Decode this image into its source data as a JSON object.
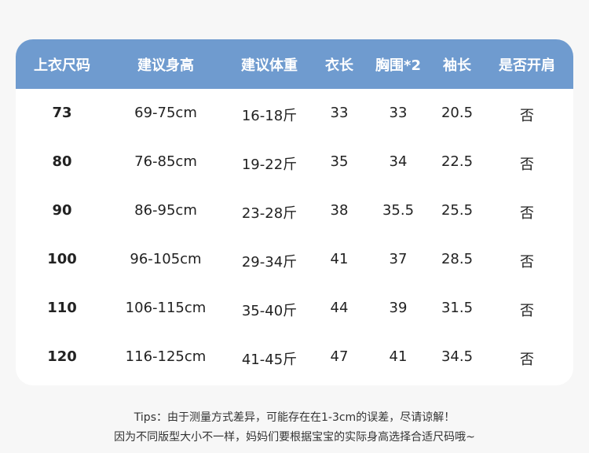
{
  "colors": {
    "header": "#6f9bcf",
    "background": "#f7f7f7"
  },
  "table": {
    "headers": [
      "上衣尺码",
      "建议身高",
      "建议体重",
      "衣长",
      "胸围*2",
      "袖长",
      "是否开肩"
    ],
    "rows": [
      [
        "73",
        "69-75cm",
        "16-18斤",
        "33",
        "33",
        "20.5",
        "否"
      ],
      [
        "80",
        "76-85cm",
        "19-22斤",
        "35",
        "34",
        "22.5",
        "否"
      ],
      [
        "90",
        "86-95cm",
        "23-28斤",
        "38",
        "35.5",
        "25.5",
        "否"
      ],
      [
        "100",
        "96-105cm",
        "29-34斤",
        "41",
        "37",
        "28.5",
        "否"
      ],
      [
        "110",
        "106-115cm",
        "35-40斤",
        "44",
        "39",
        "31.5",
        "否"
      ],
      [
        "120",
        "116-125cm",
        "41-45斤",
        "47",
        "41",
        "34.5",
        "否"
      ]
    ]
  },
  "tips": {
    "line1": "Tips：由于测量方式差异，可能存在在1-3cm的误差，尽请谅解！",
    "line2": "因为不同版型大小不一样，妈妈们要根据宝宝的实际身高选择合适尺码哦~"
  }
}
